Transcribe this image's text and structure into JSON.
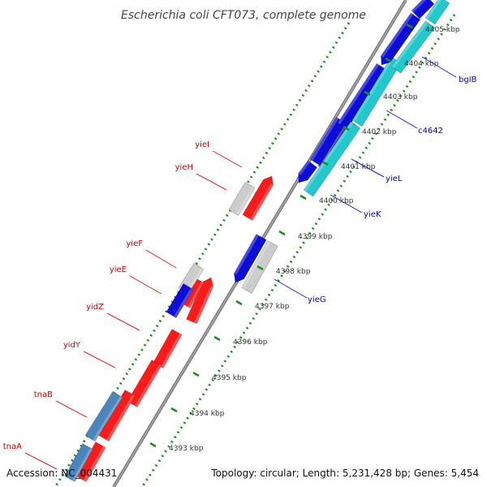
{
  "title": "Escherichia coli CFT073, complete genome",
  "footer": {
    "accession": "Accession: NC_004431",
    "stats": "Topology: circular; Length: 5,231,428 bp; Genes: 5,454"
  },
  "colors": {
    "forward_gene": "#ff1a1a",
    "reverse_gene": "#0d0dd9",
    "cyan_gene": "#22c9cc",
    "steelblue_gene": "#4a86bd",
    "purple_gene": "#4b3f9e",
    "gray_gene": "#cccccc",
    "backbone": "#999999",
    "tick_green": "#1a8c1a",
    "label_red": "#cc0000",
    "label_blue": "#0000bb"
  },
  "kbp_ticks": [
    "4393 kbp",
    "4394 kbp",
    "4395 kbp",
    "4396 kbp",
    "4397 kbp",
    "4398 kbp",
    "4399 kbp",
    "4400 kbp",
    "4401 kbp",
    "4402 kbp",
    "4403 kbp",
    "4404 kbp",
    "4405 kbp"
  ],
  "forward_labels": [
    "yieI",
    "yieH",
    "yieF",
    "yieE",
    "yidZ",
    "yidY",
    "tnaB",
    "tnaA"
  ],
  "reverse_labels": [
    "bglB",
    "c4642",
    "yieL",
    "yieK",
    "yieG"
  ]
}
